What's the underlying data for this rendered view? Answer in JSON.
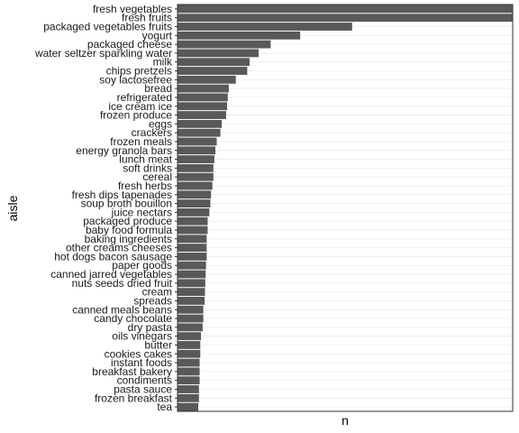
{
  "chart_data": {
    "type": "bar",
    "orientation": "horizontal",
    "xlabel": "n",
    "ylabel": "aisle",
    "grid": true,
    "xlim": [
      0,
      1
    ],
    "colors": {
      "bar": "#595959",
      "grid": "#ebebeb",
      "panel_border": "#333333"
    },
    "categories": [
      "fresh vegetables",
      "fresh fruits",
      "packaged vegetables fruits",
      "yogurt",
      "packaged cheese",
      "water seltzer sparkling water",
      "milk",
      "chips pretzels",
      "soy lactosefree",
      "bread",
      "refrigerated",
      "ice cream ice",
      "frozen produce",
      "eggs",
      "crackers",
      "frozen meals",
      "energy granola bars",
      "lunch meat",
      "soft drinks",
      "cereal",
      "fresh herbs",
      "fresh dips tapenades",
      "soup broth bouillon",
      "juice nectars",
      "packaged produce",
      "baby food formula",
      "baking ingredients",
      "other creams cheeses",
      "hot dogs bacon sausage",
      "paper goods",
      "canned jarred vegetables",
      "nuts seeds dried fruit",
      "cream",
      "spreads",
      "canned meals beans",
      "candy chocolate",
      "dry pasta",
      "oils vinegars",
      "butter",
      "cookies cakes",
      "instant foods",
      "breakfast bakery",
      "condiments",
      "pasta sauce",
      "frozen breakfast",
      "tea"
    ],
    "values": [
      1.0,
      1.0,
      0.521,
      0.366,
      0.278,
      0.242,
      0.215,
      0.208,
      0.174,
      0.153,
      0.15,
      0.148,
      0.145,
      0.132,
      0.128,
      0.117,
      0.113,
      0.11,
      0.107,
      0.107,
      0.104,
      0.1,
      0.098,
      0.095,
      0.09,
      0.09,
      0.087,
      0.087,
      0.087,
      0.085,
      0.084,
      0.083,
      0.082,
      0.081,
      0.077,
      0.077,
      0.075,
      0.07,
      0.068,
      0.068,
      0.066,
      0.066,
      0.066,
      0.064,
      0.064,
      0.062
    ]
  }
}
